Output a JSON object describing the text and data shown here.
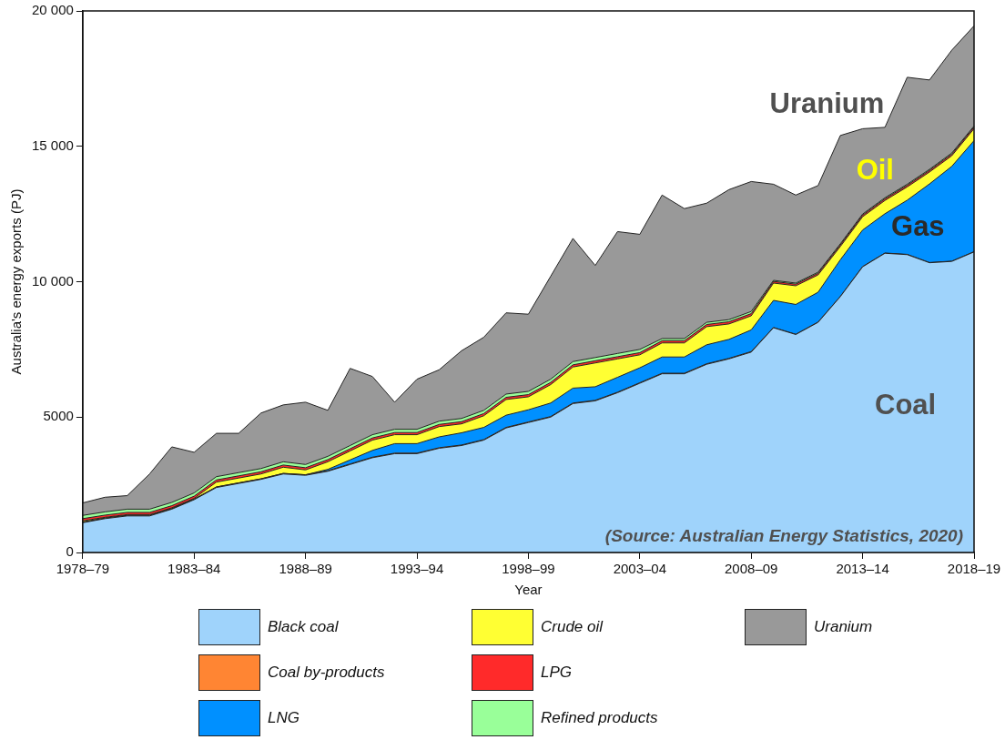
{
  "chart_data": {
    "type": "area",
    "stacked": true,
    "xlabel": "Year",
    "ylabel": "Australia's energy exports (PJ)",
    "categories": [
      "1978–79",
      null,
      null,
      null,
      null,
      "1983–84",
      null,
      null,
      null,
      null,
      "1988–89",
      null,
      null,
      null,
      null,
      "1993–94",
      null,
      null,
      null,
      null,
      "1998–99",
      null,
      null,
      null,
      null,
      "2003–04",
      null,
      null,
      null,
      null,
      "2008–09",
      null,
      null,
      null,
      null,
      "2013–14",
      null,
      null,
      null,
      null,
      "2018–19"
    ],
    "series": [
      {
        "name": "Black coal",
        "color": "#9fd3fb",
        "values": [
          1100,
          1250,
          1350,
          1350,
          1600,
          1950,
          2400,
          2550,
          2700,
          2900,
          2850,
          3000,
          3250,
          3500,
          3650,
          3650,
          3850,
          3950,
          4150,
          4600,
          4800,
          5000,
          5500,
          5600,
          5900,
          6250,
          6600,
          6600,
          6950,
          7150,
          7400,
          8300,
          8050,
          8500,
          9450,
          10550,
          11050,
          11000,
          10700,
          10750,
          11100
        ]
      },
      {
        "name": "Coal by-products",
        "color": "#ff8533",
        "values": [
          20,
          20,
          20,
          20,
          20,
          20,
          20,
          20,
          20,
          20,
          20,
          20,
          20,
          20,
          20,
          20,
          20,
          20,
          20,
          20,
          20,
          20,
          20,
          20,
          20,
          20,
          20,
          20,
          20,
          20,
          20,
          10,
          10,
          10,
          10,
          10,
          10,
          10,
          10,
          10,
          10
        ]
      },
      {
        "name": "LNG",
        "color": "#0090ff",
        "values": [
          0,
          0,
          0,
          0,
          0,
          0,
          0,
          0,
          0,
          0,
          0,
          50,
          150,
          250,
          350,
          350,
          400,
          450,
          450,
          450,
          450,
          500,
          550,
          500,
          550,
          550,
          600,
          600,
          700,
          700,
          800,
          1000,
          1100,
          1100,
          1350,
          1350,
          1450,
          2000,
          2900,
          3500,
          4100
        ]
      },
      {
        "name": "Crude oil",
        "color": "#ffff33",
        "values": [
          50,
          30,
          30,
          30,
          30,
          30,
          180,
          180,
          180,
          230,
          180,
          280,
          330,
          380,
          330,
          330,
          380,
          330,
          430,
          580,
          480,
          680,
          780,
          880,
          680,
          480,
          520,
          520,
          670,
          570,
          520,
          640,
          690,
          640,
          490,
          490,
          490,
          490,
          440,
          390,
          440
        ]
      },
      {
        "name": "LPG",
        "color": "#ff2a2a",
        "values": [
          80,
          80,
          80,
          80,
          80,
          80,
          80,
          80,
          80,
          80,
          80,
          80,
          80,
          80,
          80,
          80,
          80,
          80,
          80,
          80,
          80,
          80,
          80,
          80,
          80,
          80,
          80,
          80,
          80,
          80,
          80,
          60,
          60,
          60,
          60,
          60,
          60,
          60,
          60,
          60,
          60
        ]
      },
      {
        "name": "Refined products",
        "color": "#99ff99",
        "values": [
          120,
          120,
          120,
          120,
          120,
          120,
          120,
          120,
          120,
          120,
          120,
          120,
          120,
          120,
          120,
          120,
          120,
          120,
          120,
          120,
          120,
          120,
          120,
          120,
          120,
          120,
          80,
          80,
          80,
          80,
          80,
          40,
          40,
          40,
          40,
          40,
          40,
          40,
          40,
          40,
          40
        ]
      },
      {
        "name": "Uranium",
        "color": "#999999",
        "values": [
          460,
          540,
          500,
          1300,
          2050,
          1500,
          1600,
          1450,
          2050,
          2100,
          2300,
          1700,
          2850,
          2150,
          1000,
          1850,
          1900,
          2500,
          2700,
          3000,
          2850,
          3800,
          4550,
          3400,
          4500,
          4250,
          5300,
          4800,
          4400,
          4800,
          4800,
          3550,
          3250,
          3200,
          4000,
          3150,
          2600,
          3950,
          3300,
          3800,
          3700
        ]
      }
    ],
    "ylim": [
      0,
      20000
    ],
    "yticks": [
      0,
      5000,
      {
        "value": 10000,
        "label": "10 000"
      },
      {
        "value": 15000,
        "label": "15 000"
      },
      {
        "value": 20000,
        "label": "20 000"
      }
    ],
    "grid": false,
    "legend": "bottom",
    "annotations": [
      "Uranium",
      "Oil",
      "Gas",
      "Coal",
      "(Source: Australian Energy Statistics, 2020)"
    ]
  }
}
